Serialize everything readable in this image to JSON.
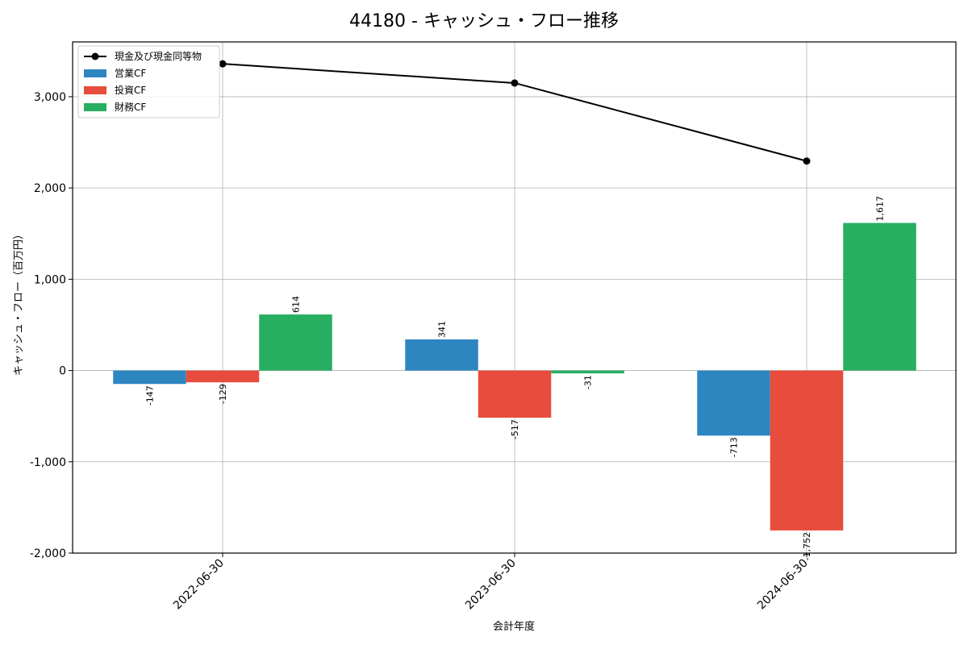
{
  "chart_data": {
    "type": "bar",
    "title": "44180 - キャッシュ・フロー推移",
    "xlabel": "会計年度",
    "ylabel": "キャッシュ・フロー（百万円）",
    "categories": [
      "2022-06-30",
      "2023-06-30",
      "2024-06-30"
    ],
    "ylim": [
      -2000,
      3600
    ],
    "yticks": [
      -2000,
      -1000,
      0,
      1000,
      2000,
      3000
    ],
    "ytick_labels": [
      "-2,000",
      "-1,000",
      "0",
      "1,000",
      "2,000",
      "3,000"
    ],
    "grid": true,
    "legend_position": "top-left",
    "series": [
      {
        "name": "営業CF",
        "type": "bar",
        "color": "#2e86c1",
        "values": [
          -147,
          341,
          -713
        ],
        "labels": [
          "-147",
          "341",
          "-713"
        ]
      },
      {
        "name": "投資CF",
        "type": "bar",
        "color": "#e74c3c",
        "values": [
          -129,
          -517,
          -1752
        ],
        "labels": [
          "-129",
          "-517",
          "-1,752"
        ]
      },
      {
        "name": "財務CF",
        "type": "bar",
        "color": "#27ae60",
        "values": [
          614,
          -31,
          1617
        ],
        "labels": [
          "614",
          "-31",
          "1,617"
        ]
      }
    ],
    "line": {
      "name": "現金及び現金同等物",
      "color": "#000000",
      "values": [
        3360,
        3150,
        2295
      ]
    }
  }
}
